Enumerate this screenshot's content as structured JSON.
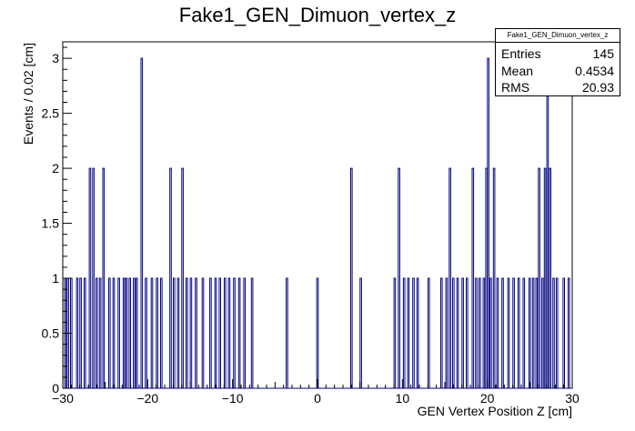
{
  "chart_data": {
    "type": "bar",
    "title": "Fake1_GEN_Dimuon_vertex_z",
    "xlabel": "GEN Vertex Position Z [cm]",
    "ylabel": "Events / 0.02 [cm]",
    "xlim": [
      -30,
      30
    ],
    "ylim": [
      0,
      3.15
    ],
    "xticks": [
      -30,
      -20,
      -10,
      0,
      10,
      20,
      30
    ],
    "yticks": [
      0,
      0.5,
      1,
      1.5,
      2,
      2.5,
      3
    ],
    "ytick_labels": [
      "0",
      "0.5",
      "1",
      "1.5",
      "2",
      "2.5",
      "3"
    ],
    "line_color": "#000080",
    "bins": [
      {
        "x": -29.7,
        "y": 1
      },
      {
        "x": -29.4,
        "y": 1
      },
      {
        "x": -29.0,
        "y": 1
      },
      {
        "x": -28.3,
        "y": 1
      },
      {
        "x": -27.9,
        "y": 1
      },
      {
        "x": -27.4,
        "y": 1
      },
      {
        "x": -26.8,
        "y": 2
      },
      {
        "x": -26.4,
        "y": 2
      },
      {
        "x": -26.0,
        "y": 1
      },
      {
        "x": -25.6,
        "y": 1
      },
      {
        "x": -25.2,
        "y": 2
      },
      {
        "x": -24.5,
        "y": 1
      },
      {
        "x": -24.0,
        "y": 1
      },
      {
        "x": -23.4,
        "y": 1
      },
      {
        "x": -22.8,
        "y": 1
      },
      {
        "x": -22.5,
        "y": 1
      },
      {
        "x": -22.1,
        "y": 1
      },
      {
        "x": -21.6,
        "y": 1
      },
      {
        "x": -21.3,
        "y": 1
      },
      {
        "x": -20.7,
        "y": 3
      },
      {
        "x": -20.2,
        "y": 1
      },
      {
        "x": -19.5,
        "y": 1
      },
      {
        "x": -18.9,
        "y": 1
      },
      {
        "x": -18.4,
        "y": 1
      },
      {
        "x": -17.3,
        "y": 2
      },
      {
        "x": -16.9,
        "y": 1
      },
      {
        "x": -16.4,
        "y": 1
      },
      {
        "x": -15.9,
        "y": 2
      },
      {
        "x": -15.4,
        "y": 1
      },
      {
        "x": -14.9,
        "y": 1
      },
      {
        "x": -14.3,
        "y": 1
      },
      {
        "x": -13.5,
        "y": 1
      },
      {
        "x": -12.6,
        "y": 1
      },
      {
        "x": -12.0,
        "y": 1
      },
      {
        "x": -11.5,
        "y": 1
      },
      {
        "x": -10.9,
        "y": 1
      },
      {
        "x": -10.4,
        "y": 1
      },
      {
        "x": -9.8,
        "y": 1
      },
      {
        "x": -9.2,
        "y": 1
      },
      {
        "x": -8.6,
        "y": 1
      },
      {
        "x": -7.7,
        "y": 1
      },
      {
        "x": -3.6,
        "y": 1
      },
      {
        "x": 0.0,
        "y": 1
      },
      {
        "x": 4.0,
        "y": 2
      },
      {
        "x": 5.1,
        "y": 1
      },
      {
        "x": 9.1,
        "y": 1
      },
      {
        "x": 9.6,
        "y": 2
      },
      {
        "x": 10.2,
        "y": 1
      },
      {
        "x": 10.7,
        "y": 1
      },
      {
        "x": 11.3,
        "y": 1
      },
      {
        "x": 11.8,
        "y": 1
      },
      {
        "x": 13.1,
        "y": 1
      },
      {
        "x": 14.6,
        "y": 1
      },
      {
        "x": 15.2,
        "y": 1
      },
      {
        "x": 15.6,
        "y": 2
      },
      {
        "x": 16.0,
        "y": 1
      },
      {
        "x": 16.5,
        "y": 1
      },
      {
        "x": 17.1,
        "y": 1
      },
      {
        "x": 17.6,
        "y": 1
      },
      {
        "x": 18.3,
        "y": 2
      },
      {
        "x": 18.7,
        "y": 1
      },
      {
        "x": 19.1,
        "y": 1
      },
      {
        "x": 19.6,
        "y": 1
      },
      {
        "x": 19.9,
        "y": 2
      },
      {
        "x": 20.1,
        "y": 3
      },
      {
        "x": 20.4,
        "y": 1
      },
      {
        "x": 20.8,
        "y": 2
      },
      {
        "x": 21.2,
        "y": 1
      },
      {
        "x": 21.8,
        "y": 1
      },
      {
        "x": 22.5,
        "y": 1
      },
      {
        "x": 23.1,
        "y": 1
      },
      {
        "x": 23.7,
        "y": 1
      },
      {
        "x": 24.3,
        "y": 1
      },
      {
        "x": 25.0,
        "y": 1
      },
      {
        "x": 25.4,
        "y": 1
      },
      {
        "x": 25.8,
        "y": 1
      },
      {
        "x": 26.1,
        "y": 2
      },
      {
        "x": 26.5,
        "y": 1
      },
      {
        "x": 26.8,
        "y": 2
      },
      {
        "x": 27.1,
        "y": 3
      },
      {
        "x": 27.4,
        "y": 2
      },
      {
        "x": 27.8,
        "y": 1
      },
      {
        "x": 28.2,
        "y": 1
      },
      {
        "x": 29.0,
        "y": 1
      },
      {
        "x": 29.6,
        "y": 1
      }
    ]
  },
  "stats": {
    "header": "Fake1_GEN_Dimuon_vertex_z",
    "entries_label": "Entries",
    "entries_value": "145",
    "mean_label": "Mean",
    "mean_value": "0.4534",
    "rms_label": "RMS",
    "rms_value": "20.93"
  }
}
